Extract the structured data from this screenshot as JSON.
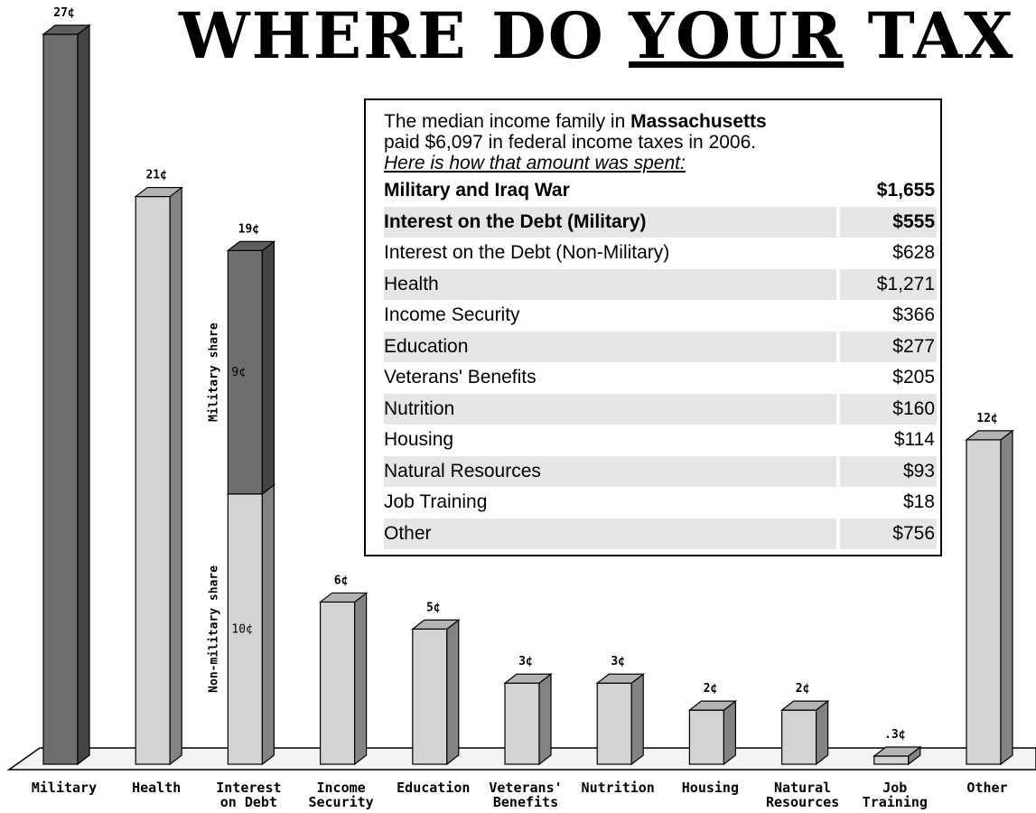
{
  "title": {
    "pre": "WHERE DO ",
    "underlined": "YOUR",
    "post": " TAX DOLLARS GO?"
  },
  "colors": {
    "dark_bar": "#6e6e6e",
    "light_bar": "#d3d3d3",
    "bar_stroke": "#000000",
    "table_shade": "#e6e6e6"
  },
  "info": {
    "intro_pre": "The median income family in ",
    "state": "Massachusetts",
    "intro_line2": "paid $6,097 in federal income taxes in 2006.",
    "intro_line3": "Here is how that amount was spent:",
    "rows": [
      {
        "label": "Military and Iraq War",
        "amount": "$1,655",
        "bold": true
      },
      {
        "label": "Interest on the Debt (Military)",
        "amount": "$555",
        "bold": true
      },
      {
        "label": "Interest on the Debt (Non-Military)",
        "amount": "$628",
        "bold": false
      },
      {
        "label": "Health",
        "amount": "$1,271",
        "bold": false
      },
      {
        "label": "Income Security",
        "amount": "$366",
        "bold": false
      },
      {
        "label": "Education",
        "amount": "$277",
        "bold": false
      },
      {
        "label": "Veterans' Benefits",
        "amount": "$205",
        "bold": false
      },
      {
        "label": "Nutrition",
        "amount": "$160",
        "bold": false
      },
      {
        "label": "Housing",
        "amount": "$114",
        "bold": false
      },
      {
        "label": "Natural Resources",
        "amount": "$93",
        "bold": false
      },
      {
        "label": "Job Training",
        "amount": "$18",
        "bold": false
      },
      {
        "label": "Other",
        "amount": "$756",
        "bold": false
      }
    ]
  },
  "chart_data": {
    "type": "bar",
    "title": "WHERE DO YOUR TAX DOLLARS GO?",
    "unit": "¢",
    "ylim": [
      0,
      27
    ],
    "grid": false,
    "categories": [
      {
        "label": [
          "Military"
        ],
        "value": 27,
        "value_label": "27¢",
        "shade": "dark"
      },
      {
        "label": [
          "Health"
        ],
        "value": 21,
        "value_label": "21¢",
        "shade": "light"
      },
      {
        "label": [
          "Interest",
          "on Debt"
        ],
        "value": 19,
        "value_label": "19¢",
        "shade": "stacked",
        "segments": [
          {
            "name": "Non-military share",
            "value": 10,
            "value_label": "10¢",
            "shade": "light"
          },
          {
            "name": "Military share",
            "value": 9,
            "value_label": "9¢",
            "shade": "dark"
          }
        ]
      },
      {
        "label": [
          "Income",
          "Security"
        ],
        "value": 6,
        "value_label": "6¢",
        "shade": "light"
      },
      {
        "label": [
          "Education"
        ],
        "value": 5,
        "value_label": "5¢",
        "shade": "light"
      },
      {
        "label": [
          "Veterans'",
          "Benefits"
        ],
        "value": 3,
        "value_label": "3¢",
        "shade": "light"
      },
      {
        "label": [
          "Nutrition"
        ],
        "value": 3,
        "value_label": "3¢",
        "shade": "light"
      },
      {
        "label": [
          "Housing"
        ],
        "value": 2,
        "value_label": "2¢",
        "shade": "light"
      },
      {
        "label": [
          "Natural",
          "Resources"
        ],
        "value": 2,
        "value_label": "2¢",
        "shade": "light"
      },
      {
        "label": [
          "Job",
          "Training"
        ],
        "value": 0.3,
        "value_label": ".3¢",
        "shade": "light"
      },
      {
        "label": [
          "Other"
        ],
        "value": 12,
        "value_label": "12¢",
        "shade": "light"
      }
    ]
  }
}
